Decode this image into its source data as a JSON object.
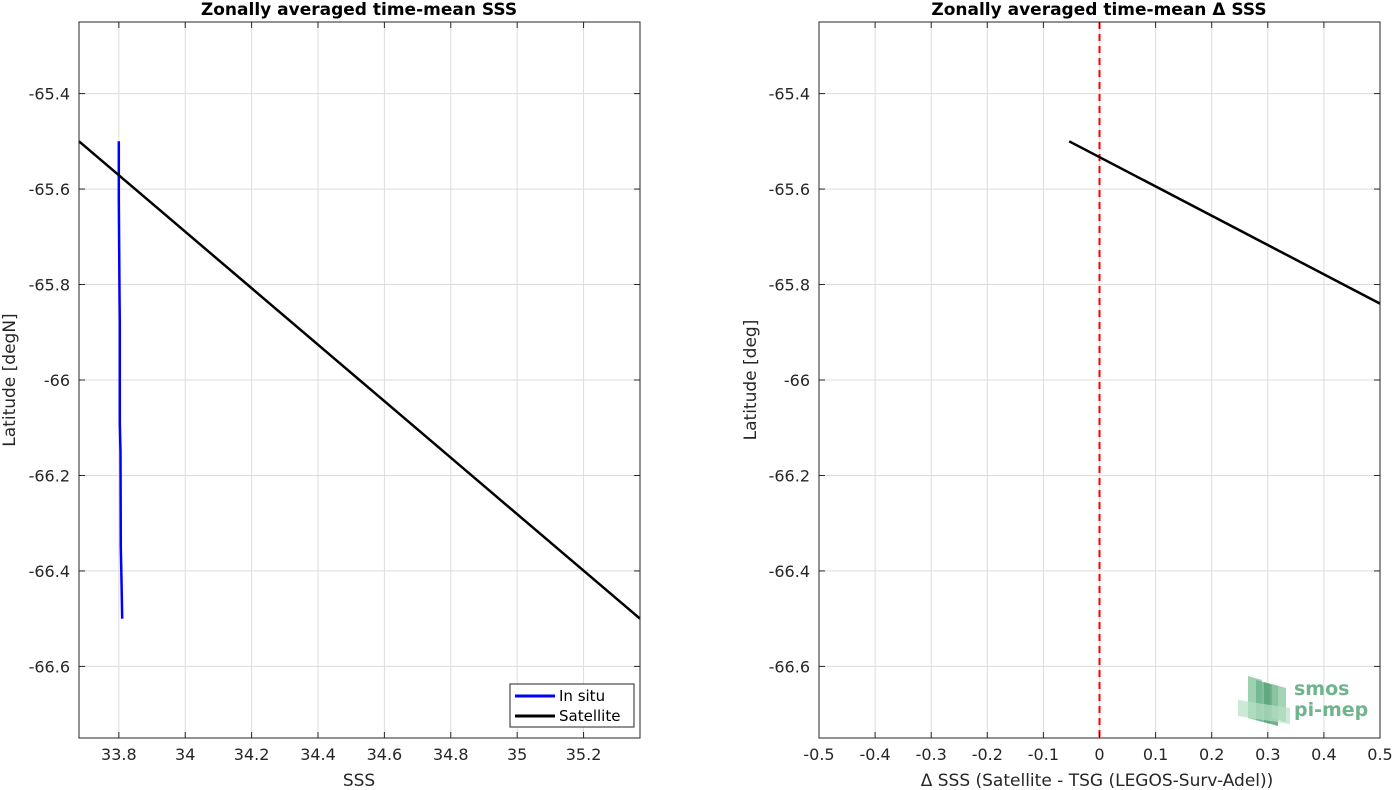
{
  "chart_data": [
    {
      "type": "line",
      "title": "Zonally averaged time-mean SSS",
      "xlabel": "SSS",
      "ylabel": "Latitude [degN]",
      "xlim": [
        33.68,
        35.37
      ],
      "ylim": [
        -66.75,
        -65.25
      ],
      "xticks": [
        33.8,
        34,
        34.2,
        34.4,
        34.6,
        34.8,
        35,
        35.2
      ],
      "xtick_labels": [
        "33.8",
        "34",
        "34.2",
        "34.4",
        "34.6",
        "34.8",
        "35",
        "35.2"
      ],
      "yticks": [
        -65.4,
        -65.6,
        -65.8,
        -66,
        -66.2,
        -66.4,
        -66.6
      ],
      "ytick_labels": [
        "-65.4",
        "-65.6",
        "-65.8",
        "-66",
        "-66.2",
        "-66.4",
        "-66.6"
      ],
      "grid": true,
      "legend_position": "bottom-right",
      "series": [
        {
          "name": "In situ",
          "color": "#0000ff",
          "x": [
            33.8,
            33.8,
            33.802,
            33.803,
            33.803,
            33.805,
            33.806,
            33.808,
            33.81
          ],
          "y": [
            -65.5,
            -65.62,
            -65.82,
            -65.88,
            -66.09,
            -66.15,
            -66.35,
            -66.42,
            -66.5
          ]
        },
        {
          "name": "Satellite",
          "color": "#000000",
          "x": [
            33.68,
            35.37
          ],
          "y": [
            -65.5,
            -66.5
          ]
        }
      ]
    },
    {
      "type": "line",
      "title": "Zonally averaged time-mean Δ SSS",
      "xlabel": "Δ SSS (Satellite - TSG (LEGOS-Surv-Adel))",
      "ylabel": "Latitude [deg]",
      "xlim": [
        -0.5,
        0.5
      ],
      "ylim": [
        -66.75,
        -65.25
      ],
      "xticks": [
        -0.5,
        -0.4,
        -0.3,
        -0.2,
        -0.1,
        0,
        0.1,
        0.2,
        0.3,
        0.4,
        0.5
      ],
      "xtick_labels": [
        "-0.5",
        "-0.4",
        "-0.3",
        "-0.2",
        "-0.1",
        "0",
        "0.1",
        "0.2",
        "0.3",
        "0.4",
        "0.5"
      ],
      "yticks": [
        -65.4,
        -65.6,
        -65.8,
        -66,
        -66.2,
        -66.4,
        -66.6
      ],
      "ytick_labels": [
        "-65.4",
        "-65.6",
        "-65.8",
        "-66",
        "-66.2",
        "-66.4",
        "-66.6"
      ],
      "grid": true,
      "reference_line": {
        "x": 0,
        "color": "#ff0000",
        "style": "dashed"
      },
      "series": [
        {
          "color": "#000000",
          "x": [
            -0.054,
            0.5
          ],
          "y": [
            -65.5,
            -65.84
          ]
        }
      ]
    }
  ],
  "watermark": {
    "line1": "smos",
    "line2": "pi-mep",
    "color": "#6fb48c"
  }
}
